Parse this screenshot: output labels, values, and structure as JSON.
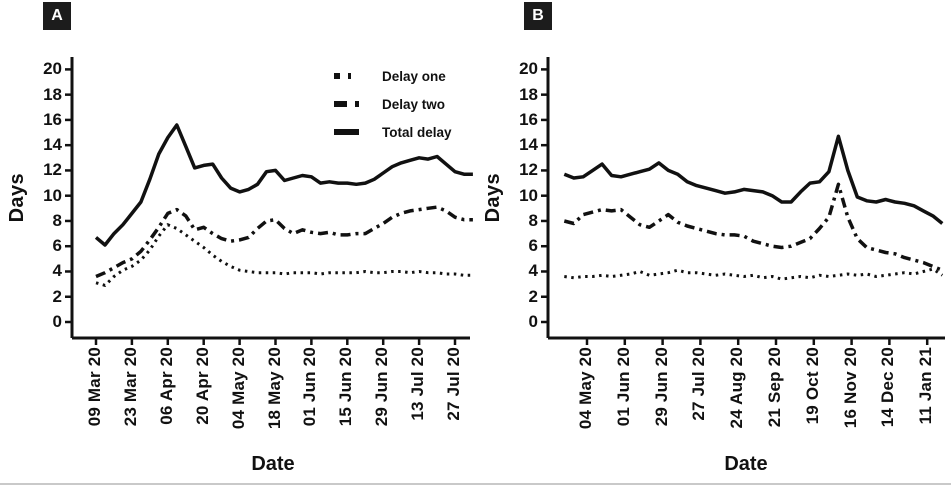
{
  "figure": {
    "background": "#ffffff",
    "ink_color": "#111111",
    "bottom_border_color": "#c9c9c9"
  },
  "chart_data": [
    {
      "panel_label": "A",
      "type": "line",
      "xlabel": "Date",
      "ylabel": "Days",
      "ylim": [
        0,
        21
      ],
      "yticks": [
        0,
        2,
        4,
        6,
        8,
        10,
        12,
        14,
        16,
        18,
        20
      ],
      "x_tick_labels": [
        "09 Mar 20",
        "23 Mar 20",
        "06 Apr 20",
        "20 Apr 20",
        "04 May 20",
        "18 May 20",
        "01 Jun 20",
        "15 Jun 20",
        "29 Jun 20",
        "13 Jul 20",
        "27 Jul 20"
      ],
      "x_tick_spacing_days": 14,
      "x_start_tick": 0,
      "x_step_ticks": 0.25,
      "grid": false,
      "legend_visible": true,
      "legend_position": "top-right",
      "series": [
        {
          "name": "Delay one",
          "style": "dotted",
          "values": [
            3.1,
            2.9,
            3.6,
            4.1,
            4.4,
            4.9,
            5.7,
            6.8,
            7.7,
            7.4,
            6.9,
            6.4,
            5.9,
            5.3,
            4.8,
            4.4,
            4.1,
            4.0,
            3.9,
            3.9,
            3.9,
            3.8,
            3.9,
            3.9,
            3.9,
            3.8,
            3.9,
            3.9,
            3.9,
            3.9,
            4.0,
            3.9,
            3.9,
            4.0,
            4.0,
            3.9,
            4.0,
            3.9,
            3.9,
            3.8,
            3.8,
            3.7,
            3.7
          ]
        },
        {
          "name": "Delay two",
          "style": "dotdash",
          "values": [
            3.6,
            3.9,
            4.3,
            4.7,
            5.0,
            5.6,
            6.5,
            7.5,
            8.6,
            8.9,
            8.4,
            7.3,
            7.5,
            7.0,
            6.6,
            6.4,
            6.5,
            6.7,
            7.4,
            8.0,
            8.1,
            7.4,
            7.0,
            7.3,
            7.1,
            7.0,
            7.1,
            6.9,
            6.9,
            7.0,
            7.0,
            7.4,
            7.8,
            8.3,
            8.6,
            8.8,
            8.9,
            9.0,
            9.1,
            8.8,
            8.3,
            8.1,
            8.1
          ]
        },
        {
          "name": "Total delay",
          "style": "solid",
          "values": [
            6.7,
            6.1,
            7.0,
            7.7,
            8.6,
            9.5,
            11.3,
            13.3,
            14.6,
            15.6,
            13.9,
            12.2,
            12.4,
            12.5,
            11.4,
            10.6,
            10.3,
            10.5,
            10.9,
            11.9,
            12.0,
            11.2,
            11.4,
            11.6,
            11.5,
            11.0,
            11.1,
            11.0,
            11.0,
            10.9,
            11.0,
            11.3,
            11.8,
            12.3,
            12.6,
            12.8,
            13.0,
            12.9,
            13.1,
            12.5,
            11.9,
            11.7,
            11.7
          ]
        }
      ]
    },
    {
      "panel_label": "B",
      "type": "line",
      "xlabel": "Date",
      "ylabel": "Days",
      "ylim": [
        0,
        21
      ],
      "yticks": [
        0,
        2,
        4,
        6,
        8,
        10,
        12,
        14,
        16,
        18,
        20
      ],
      "x_tick_labels": [
        "04 May 20",
        "01 Jun 20",
        "29 Jun 20",
        "27 Jul 20",
        "24 Aug 20",
        "21 Sep 20",
        "19 Oct 20",
        "16 Nov 20",
        "14 Dec 20",
        "11 Jan 21"
      ],
      "x_tick_spacing_days": 28,
      "x_start_tick": -0.6,
      "x_step_ticks": 0.25,
      "grid": false,
      "legend_visible": false,
      "series": [
        {
          "name": "Delay one",
          "style": "dotted",
          "values": [
            3.6,
            3.5,
            3.6,
            3.6,
            3.7,
            3.6,
            3.7,
            3.8,
            4.0,
            3.7,
            3.8,
            3.9,
            4.1,
            3.9,
            3.9,
            3.8,
            3.7,
            3.8,
            3.7,
            3.6,
            3.7,
            3.5,
            3.6,
            3.4,
            3.5,
            3.6,
            3.5,
            3.7,
            3.6,
            3.7,
            3.8,
            3.7,
            3.8,
            3.6,
            3.7,
            3.8,
            3.9,
            3.8,
            4.0,
            4.2,
            3.7
          ]
        },
        {
          "name": "Delay two",
          "style": "dotdash",
          "values": [
            8.0,
            7.8,
            8.5,
            8.7,
            8.9,
            8.8,
            8.9,
            8.3,
            7.7,
            7.5,
            8.0,
            8.5,
            7.9,
            7.6,
            7.4,
            7.2,
            7.0,
            6.9,
            6.9,
            6.8,
            6.4,
            6.2,
            6.0,
            5.9,
            6.0,
            6.3,
            6.6,
            7.4,
            8.3,
            10.9,
            8.3,
            6.6,
            5.9,
            5.7,
            5.5,
            5.4,
            5.1,
            4.9,
            4.7,
            4.4,
            4.1
          ]
        },
        {
          "name": "Total delay",
          "style": "solid",
          "values": [
            11.7,
            11.4,
            11.5,
            12.0,
            12.5,
            11.6,
            11.5,
            11.7,
            11.9,
            12.1,
            12.6,
            12.0,
            11.7,
            11.1,
            10.8,
            10.6,
            10.4,
            10.2,
            10.3,
            10.5,
            10.4,
            10.3,
            10.0,
            9.5,
            9.5,
            10.3,
            11.0,
            11.1,
            11.9,
            14.7,
            12.0,
            9.9,
            9.6,
            9.5,
            9.7,
            9.5,
            9.4,
            9.2,
            8.8,
            8.4,
            7.8
          ]
        }
      ]
    }
  ]
}
